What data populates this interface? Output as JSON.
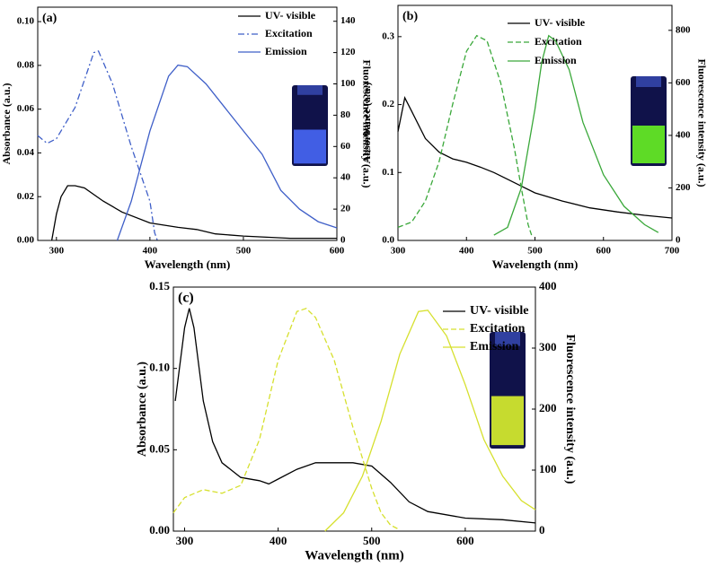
{
  "chart_data": [
    {
      "type": "line",
      "label": "(a)",
      "x_label": "Wavelength (nm)",
      "y_label": "Absorbance (a.u.)",
      "y2_label": "Fluorescence intensity (a.u.)",
      "xlim": [
        280,
        600
      ],
      "xticks": [
        300,
        400,
        500,
        600
      ],
      "ylim": [
        0,
        0.1066
      ],
      "yticks": [
        {
          "value": 0,
          "label": "0.00"
        },
        {
          "value": 0.02,
          "label": "0.02"
        },
        {
          "value": 0.04,
          "label": "0.04"
        },
        {
          "value": 0.06,
          "label": "0.06"
        },
        {
          "value": 0.08,
          "label": "0.08"
        },
        {
          "value": 0.1,
          "label": "0.10"
        }
      ],
      "y2lim": [
        0,
        149
      ],
      "y2ticks": [
        0,
        20,
        40,
        60,
        80,
        100,
        120,
        140
      ],
      "legend": "upper right",
      "series": [
        {
          "name": "UV- visible",
          "color": "#000000",
          "line_style": "solid",
          "x": [
            295,
            300,
            305,
            312,
            320,
            330,
            350,
            370,
            400,
            430,
            450,
            470,
            500,
            550,
            600
          ],
          "values": [
            0,
            0.012,
            0.02,
            0.025,
            0.025,
            0.024,
            0.018,
            0.013,
            0.008,
            0.006,
            0.005,
            0.003,
            0.002,
            0.001,
            0.001
          ]
        },
        {
          "name": "Excitation",
          "color": "#3f5fc8",
          "line_style": "dashdot",
          "axis": "y2",
          "x": [
            280,
            290,
            300,
            320,
            340,
            345,
            360,
            380,
            400,
            405,
            408
          ],
          "values": [
            67,
            62,
            65,
            85,
            120,
            121,
            100,
            60,
            25,
            5,
            0
          ]
        },
        {
          "name": "Emission",
          "color": "#3f5fc8",
          "line_style": "solid",
          "axis": "y2",
          "x": [
            365,
            380,
            400,
            420,
            430,
            440,
            460,
            480,
            500,
            520,
            540,
            560,
            580,
            600
          ],
          "values": [
            0,
            25,
            70,
            105,
            112,
            111,
            100,
            85,
            70,
            55,
            32,
            20,
            12,
            8
          ]
        }
      ]
    },
    {
      "type": "line",
      "label": "(b)",
      "x_label": "Wavelength (nm)",
      "y_label": "Absorbance (a.u.)",
      "y2_label": "Fluorescence intensity (a.u.)",
      "xlim": [
        300,
        700
      ],
      "xticks": [
        300,
        400,
        500,
        600,
        700
      ],
      "ylim": [
        0,
        0.346
      ],
      "yticks": [
        {
          "value": 0,
          "label": "0.0"
        },
        0.1,
        0.2,
        0.3
      ],
      "y2lim": [
        0,
        895
      ],
      "y2ticks": [
        0,
        200,
        400,
        600,
        800
      ],
      "legend": "upper right",
      "series": [
        {
          "name": "UV- visible",
          "color": "#000000",
          "line_style": "solid",
          "x": [
            300,
            310,
            320,
            340,
            360,
            380,
            400,
            420,
            440,
            460,
            480,
            500,
            540,
            580,
            620,
            660,
            700
          ],
          "values": [
            0.16,
            0.21,
            0.19,
            0.15,
            0.13,
            0.12,
            0.115,
            0.108,
            0.1,
            0.09,
            0.08,
            0.07,
            0.058,
            0.048,
            0.042,
            0.037,
            0.033
          ]
        },
        {
          "name": "Excitation",
          "color": "#3aa83a",
          "line_style": "dashed",
          "axis": "y2",
          "x": [
            300,
            320,
            340,
            360,
            380,
            400,
            415,
            430,
            450,
            470,
            480,
            490,
            495
          ],
          "values": [
            50,
            70,
            150,
            300,
            520,
            720,
            780,
            760,
            600,
            350,
            200,
            60,
            20
          ]
        },
        {
          "name": "Emission",
          "color": "#3aa83a",
          "line_style": "solid",
          "axis": "y2",
          "x": [
            440,
            460,
            480,
            500,
            510,
            520,
            530,
            550,
            570,
            600,
            630,
            660,
            680
          ],
          "values": [
            20,
            50,
            200,
            500,
            680,
            780,
            760,
            650,
            450,
            250,
            130,
            60,
            30
          ]
        }
      ]
    },
    {
      "type": "line",
      "label": "(c)",
      "x_label": "Wavelength (nm)",
      "y_label": "Absorbance (a.u.)",
      "y2_label": "Fluorescence intensity (a.u.)",
      "xlim": [
        288,
        675
      ],
      "xticks": [
        300,
        400,
        500,
        600
      ],
      "ylim": [
        0,
        0.15
      ],
      "yticks": [
        {
          "value": 0,
          "label": "0.00"
        },
        {
          "value": 0.05,
          "label": "0.05"
        },
        {
          "value": 0.1,
          "label": "0.10"
        },
        {
          "value": 0.15,
          "label": "0.15"
        }
      ],
      "y2lim": [
        0,
        400
      ],
      "y2ticks": [
        0,
        100,
        200,
        300,
        400
      ],
      "legend": "upper right",
      "series": [
        {
          "name": "UV- visible",
          "color": "#000000",
          "line_style": "solid",
          "x": [
            290,
            300,
            305,
            310,
            320,
            330,
            340,
            360,
            380,
            390,
            400,
            420,
            440,
            480,
            500,
            520,
            540,
            560,
            600,
            640,
            675
          ],
          "values": [
            0.08,
            0.125,
            0.137,
            0.125,
            0.08,
            0.055,
            0.042,
            0.033,
            0.031,
            0.029,
            0.032,
            0.038,
            0.042,
            0.042,
            0.04,
            0.03,
            0.018,
            0.012,
            0.008,
            0.007,
            0.005
          ]
        },
        {
          "name": "Excitation",
          "color": "#d6e02e",
          "line_style": "dashed",
          "axis": "y2",
          "x": [
            288,
            300,
            320,
            340,
            360,
            380,
            400,
            420,
            430,
            440,
            460,
            480,
            500,
            510,
            520,
            530
          ],
          "values": [
            30,
            55,
            68,
            62,
            75,
            150,
            280,
            360,
            365,
            350,
            280,
            170,
            70,
            30,
            10,
            2
          ]
        },
        {
          "name": "Emission",
          "color": "#d6e02e",
          "line_style": "solid",
          "axis": "y2",
          "x": [
            450,
            470,
            490,
            510,
            530,
            550,
            560,
            580,
            600,
            620,
            640,
            660,
            675
          ],
          "values": [
            0,
            30,
            90,
            180,
            290,
            360,
            362,
            320,
            240,
            150,
            90,
            50,
            35
          ]
        }
      ]
    }
  ]
}
